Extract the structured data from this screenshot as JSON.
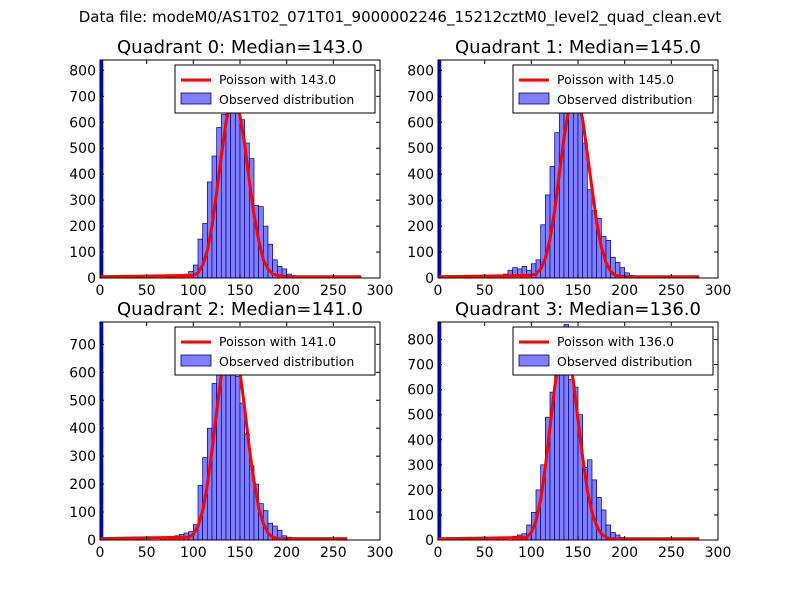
{
  "figure_title": "Data file: modeM0/AS1T02_071T01_9000002246_15212cztM0_level2_quad_clean.evt",
  "colors": {
    "poisson": "#ff0000",
    "observed_fill": "#7f7fff",
    "observed_edge": "#00007f",
    "spike": "#0000ff"
  },
  "chart_data": [
    {
      "type": "bar",
      "title": "Quadrant 0: Median=143.0",
      "median": 143.0,
      "xlim": [
        0,
        300
      ],
      "ylim": [
        0,
        840
      ],
      "xticks": [
        0,
        50,
        100,
        150,
        200,
        250,
        300
      ],
      "yticks": [
        0,
        100,
        200,
        300,
        400,
        500,
        600,
        700,
        800
      ],
      "legend": {
        "position": "top-right",
        "poisson_label": "Poisson with 143.0",
        "observed_label": "Observed distribution"
      },
      "spike": {
        "x": 0,
        "value": 840
      },
      "bin_width": 5,
      "bins": [
        [
          70,
          5
        ],
        [
          75,
          5
        ],
        [
          80,
          12
        ],
        [
          85,
          8
        ],
        [
          90,
          15
        ],
        [
          95,
          25
        ],
        [
          100,
          50
        ],
        [
          105,
          150
        ],
        [
          110,
          210
        ],
        [
          115,
          370
        ],
        [
          120,
          470
        ],
        [
          125,
          580
        ],
        [
          130,
          630
        ],
        [
          135,
          790
        ],
        [
          140,
          800
        ],
        [
          145,
          730
        ],
        [
          150,
          610
        ],
        [
          155,
          520
        ],
        [
          160,
          460
        ],
        [
          165,
          280
        ],
        [
          170,
          275
        ],
        [
          175,
          200
        ],
        [
          180,
          130
        ],
        [
          185,
          70
        ],
        [
          190,
          45
        ],
        [
          195,
          35
        ],
        [
          200,
          15
        ],
        [
          205,
          10
        ],
        [
          210,
          5
        ]
      ],
      "poisson_x": [
        0,
        100,
        105,
        110,
        115,
        120,
        125,
        130,
        135,
        140,
        145,
        150,
        155,
        160,
        165,
        170,
        175,
        180,
        185,
        190,
        200,
        280
      ],
      "poisson_y": [
        5,
        10,
        20,
        50,
        105,
        200,
        330,
        470,
        600,
        680,
        690,
        625,
        515,
        375,
        245,
        145,
        70,
        35,
        15,
        10,
        5,
        5
      ]
    },
    {
      "type": "bar",
      "title": "Quadrant 1: Median=145.0",
      "median": 145.0,
      "xlim": [
        0,
        300
      ],
      "ylim": [
        0,
        840
      ],
      "xticks": [
        0,
        50,
        100,
        150,
        200,
        250,
        300
      ],
      "yticks": [
        0,
        100,
        200,
        300,
        400,
        500,
        600,
        700,
        800
      ],
      "legend": {
        "position": "top-right",
        "poisson_label": "Poisson with 145.0",
        "observed_label": "Observed distribution"
      },
      "spike": {
        "x": 0,
        "value": 840
      },
      "bin_width": 5,
      "bins": [
        [
          65,
          10
        ],
        [
          70,
          15
        ],
        [
          75,
          30
        ],
        [
          80,
          40
        ],
        [
          85,
          35
        ],
        [
          90,
          45
        ],
        [
          95,
          30
        ],
        [
          100,
          55
        ],
        [
          105,
          70
        ],
        [
          110,
          205
        ],
        [
          115,
          320
        ],
        [
          120,
          430
        ],
        [
          125,
          560
        ],
        [
          130,
          640
        ],
        [
          135,
          705
        ],
        [
          140,
          800
        ],
        [
          145,
          700
        ],
        [
          150,
          680
        ],
        [
          155,
          520
        ],
        [
          160,
          340
        ],
        [
          165,
          260
        ],
        [
          170,
          230
        ],
        [
          175,
          160
        ],
        [
          180,
          145
        ],
        [
          185,
          80
        ],
        [
          190,
          60
        ],
        [
          195,
          40
        ],
        [
          200,
          20
        ],
        [
          205,
          10
        ]
      ],
      "poisson_x": [
        0,
        100,
        105,
        110,
        115,
        120,
        125,
        130,
        135,
        140,
        145,
        150,
        155,
        160,
        165,
        170,
        175,
        180,
        185,
        190,
        200,
        280
      ],
      "poisson_y": [
        5,
        10,
        15,
        35,
        75,
        150,
        260,
        400,
        540,
        650,
        705,
        690,
        610,
        480,
        345,
        215,
        120,
        60,
        25,
        10,
        5,
        5
      ]
    },
    {
      "type": "bar",
      "title": "Quadrant 2: Median=141.0",
      "median": 141.0,
      "xlim": [
        0,
        300
      ],
      "ylim": [
        0,
        780
      ],
      "xticks": [
        0,
        50,
        100,
        150,
        200,
        250,
        300
      ],
      "yticks": [
        0,
        100,
        200,
        300,
        400,
        500,
        600,
        700
      ],
      "legend": {
        "position": "top-right",
        "poisson_label": "Poisson with 141.0",
        "observed_label": "Observed distribution"
      },
      "spike": {
        "x": 0,
        "value": 780
      },
      "bin_width": 5,
      "bins": [
        [
          65,
          5
        ],
        [
          70,
          5
        ],
        [
          75,
          10
        ],
        [
          80,
          15
        ],
        [
          85,
          20
        ],
        [
          90,
          25
        ],
        [
          95,
          30
        ],
        [
          100,
          55
        ],
        [
          105,
          195
        ],
        [
          110,
          295
        ],
        [
          115,
          400
        ],
        [
          120,
          560
        ],
        [
          125,
          600
        ],
        [
          130,
          655
        ],
        [
          135,
          730
        ],
        [
          140,
          700
        ],
        [
          145,
          585
        ],
        [
          150,
          490
        ],
        [
          155,
          380
        ],
        [
          160,
          265
        ],
        [
          165,
          200
        ],
        [
          170,
          130
        ],
        [
          175,
          105
        ],
        [
          180,
          60
        ],
        [
          185,
          50
        ],
        [
          190,
          35
        ],
        [
          195,
          15
        ],
        [
          200,
          10
        ]
      ],
      "poisson_x": [
        0,
        95,
        100,
        105,
        110,
        115,
        120,
        125,
        130,
        135,
        140,
        145,
        150,
        155,
        160,
        165,
        170,
        175,
        180,
        185,
        190,
        265
      ],
      "poisson_y": [
        5,
        10,
        20,
        50,
        105,
        195,
        320,
        460,
        590,
        690,
        750,
        700,
        600,
        470,
        330,
        210,
        115,
        60,
        25,
        10,
        5,
        5
      ]
    },
    {
      "type": "bar",
      "title": "Quadrant 3: Median=136.0",
      "median": 136.0,
      "xlim": [
        0,
        300
      ],
      "ylim": [
        0,
        870
      ],
      "xticks": [
        0,
        50,
        100,
        150,
        200,
        250,
        300
      ],
      "yticks": [
        0,
        100,
        200,
        300,
        400,
        500,
        600,
        700,
        800
      ],
      "legend": {
        "position": "top-right",
        "poisson_label": "Poisson with 136.0",
        "observed_label": "Observed distribution"
      },
      "spike": {
        "x": 0,
        "value": 870
      },
      "bin_width": 5,
      "bins": [
        [
          60,
          5
        ],
        [
          70,
          10
        ],
        [
          80,
          15
        ],
        [
          85,
          20
        ],
        [
          90,
          25
        ],
        [
          95,
          60
        ],
        [
          100,
          110
        ],
        [
          105,
          200
        ],
        [
          110,
          300
        ],
        [
          115,
          490
        ],
        [
          120,
          590
        ],
        [
          125,
          780
        ],
        [
          130,
          830
        ],
        [
          135,
          860
        ],
        [
          140,
          640
        ],
        [
          145,
          610
        ],
        [
          150,
          500
        ],
        [
          155,
          290
        ],
        [
          160,
          320
        ],
        [
          165,
          240
        ],
        [
          170,
          170
        ],
        [
          175,
          120
        ],
        [
          180,
          60
        ],
        [
          185,
          30
        ],
        [
          190,
          20
        ],
        [
          195,
          10
        ]
      ],
      "poisson_x": [
        0,
        95,
        100,
        105,
        110,
        115,
        120,
        125,
        130,
        135,
        140,
        145,
        150,
        155,
        160,
        165,
        170,
        175,
        180,
        185,
        190,
        280
      ],
      "poisson_y": [
        5,
        10,
        30,
        75,
        160,
        290,
        450,
        610,
        730,
        780,
        745,
        635,
        480,
        330,
        200,
        110,
        55,
        25,
        10,
        5,
        5,
        5
      ]
    }
  ]
}
